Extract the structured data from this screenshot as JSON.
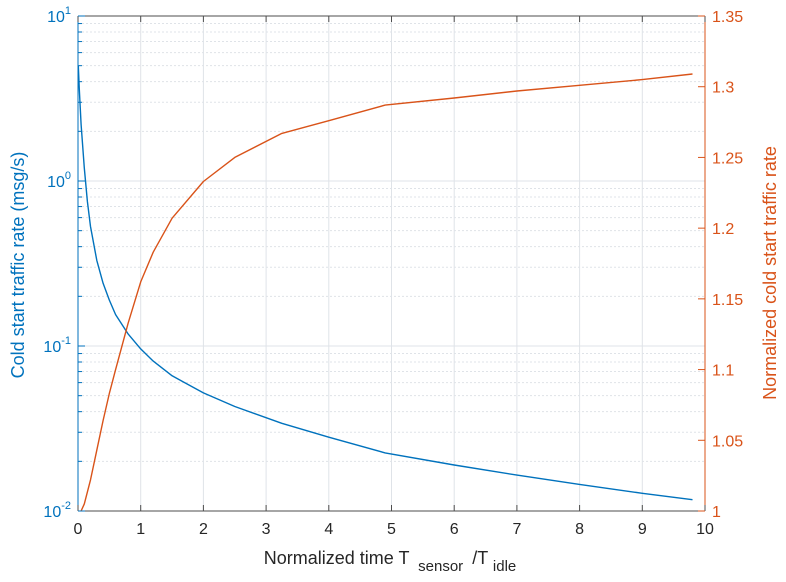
{
  "chart_data": {
    "type": "line",
    "title": "",
    "xlabel": {
      "main": "Normalized time T",
      "sub1": "sensor",
      "slash": "/T",
      "sub2": "idle"
    },
    "ylabel_left": "Cold start traffic rate (msg/s)",
    "ylabel_right": "Normalized cold start traffic rate",
    "xlim": [
      0,
      10
    ],
    "ylim_left": [
      0.01,
      10
    ],
    "ylim_right": [
      1,
      1.35
    ],
    "yscale_left": "log",
    "yscale_right": "linear",
    "grid": true,
    "colors": {
      "left": "#0072BD",
      "right": "#D95319",
      "grid": "#dfe3e8",
      "axis_x": "#4d4d4d"
    },
    "x_ticks": [
      "0",
      "1",
      "2",
      "3",
      "4",
      "5",
      "6",
      "7",
      "8",
      "9",
      "10"
    ],
    "y_left_ticks": [
      {
        "base": "10",
        "exp": "1"
      },
      {
        "base": "10",
        "exp": "0"
      },
      {
        "base": "10",
        "exp": "-1"
      },
      {
        "base": "10",
        "exp": "-2"
      }
    ],
    "y_right_ticks": [
      "1.35",
      "1.3",
      "1.25",
      "1.2",
      "1.15",
      "1.1",
      "1.05",
      "1"
    ],
    "series": [
      {
        "axis": "left",
        "x": [
          0.005,
          0.02,
          0.05,
          0.1,
          0.15,
          0.2,
          0.3,
          0.4,
          0.5,
          0.6,
          0.8,
          1.0,
          1.2,
          1.5,
          2.0,
          2.5,
          3.25,
          4.0,
          4.9,
          6.0,
          7.0,
          8.0,
          9.0,
          9.8
        ],
        "y": [
          5.0,
          3.6,
          2.2,
          1.2,
          0.75,
          0.53,
          0.33,
          0.24,
          0.19,
          0.155,
          0.118,
          0.096,
          0.081,
          0.066,
          0.052,
          0.043,
          0.034,
          0.028,
          0.0225,
          0.019,
          0.0165,
          0.0145,
          0.0128,
          0.0117
        ]
      },
      {
        "axis": "right",
        "x": [
          0.05,
          0.1,
          0.2,
          0.3,
          0.4,
          0.5,
          0.6,
          0.8,
          1.0,
          1.2,
          1.5,
          2.0,
          2.5,
          3.25,
          4.0,
          4.9,
          6.0,
          7.0,
          8.0,
          9.0,
          9.8
        ],
        "y": [
          1.0,
          1.005,
          1.022,
          1.043,
          1.064,
          1.083,
          1.1,
          1.133,
          1.162,
          1.183,
          1.207,
          1.233,
          1.25,
          1.267,
          1.276,
          1.287,
          1.292,
          1.297,
          1.301,
          1.305,
          1.309
        ]
      }
    ]
  }
}
